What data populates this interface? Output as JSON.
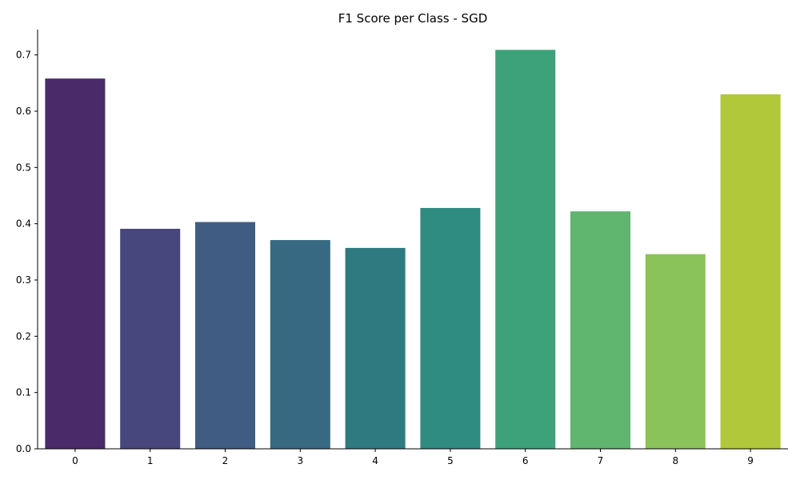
{
  "chart_data": {
    "type": "bar",
    "title": "F1 Score per Class - SGD",
    "xlabel": "",
    "ylabel": "",
    "categories": [
      "0",
      "1",
      "2",
      "3",
      "4",
      "5",
      "6",
      "7",
      "8",
      "9"
    ],
    "values": [
      0.658,
      0.391,
      0.403,
      0.371,
      0.357,
      0.428,
      0.709,
      0.422,
      0.346,
      0.63
    ],
    "ylim": [
      0,
      0.745
    ],
    "yticks": [
      "0.0",
      "0.1",
      "0.2",
      "0.3",
      "0.4",
      "0.5",
      "0.6",
      "0.7"
    ],
    "grid": false,
    "colors": [
      "#4a2a69",
      "#47477d",
      "#405c82",
      "#376a82",
      "#2f7a80",
      "#2f8c80",
      "#3da27a",
      "#60b56f",
      "#8bc35b",
      "#b0c83a"
    ]
  }
}
